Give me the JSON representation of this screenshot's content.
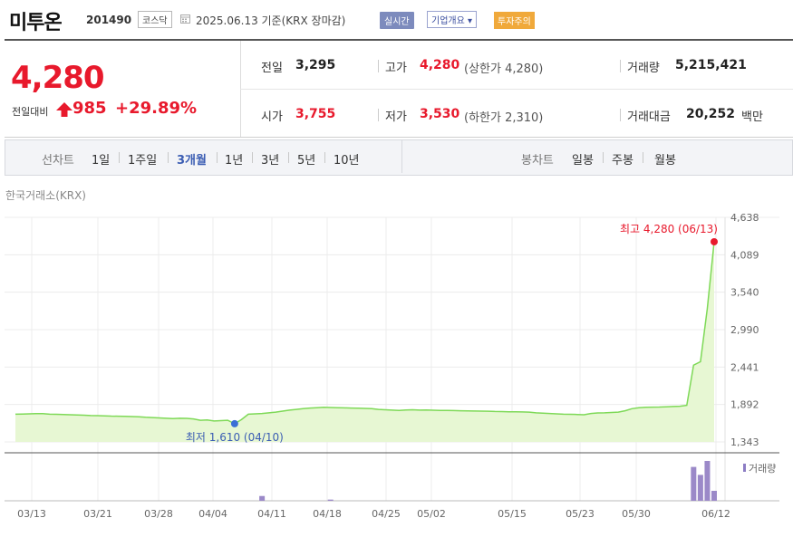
{
  "header": {
    "stock_name": "미투온",
    "stock_code": "201490",
    "market": "코스닥",
    "date_text": "2025.06.13  기준(KRX 장마감)",
    "btn_realtime": "실시간",
    "btn_company": "기업개요 ▾",
    "btn_warning": "투자주의"
  },
  "quote": {
    "price": "4,280",
    "change_label": "전일대비",
    "change_value": "985",
    "change_pct": "+29.89%",
    "prev_close_label": "전일",
    "prev_close": "3,295",
    "high_label": "고가",
    "high": "4,280",
    "upper_limit": "(상한가 4,280)",
    "volume_label": "거래량",
    "volume": "5,215,421",
    "open_label": "시가",
    "open": "3,755",
    "low_label": "저가",
    "low": "3,530",
    "lower_limit": "(하한가 2,310)",
    "trade_value_label": "거래대금",
    "trade_value": "20,252",
    "trade_value_unit": "백만"
  },
  "periods": {
    "line_chart_label": "선차트",
    "line_items": [
      "1일",
      "1주일",
      "3개월",
      "1년",
      "3년",
      "5년",
      "10년"
    ],
    "active": "3개월",
    "candle_chart_label": "봉차트",
    "candle_items": [
      "일봉",
      "주봉",
      "월봉"
    ]
  },
  "colors": {
    "up": "#e8192c",
    "accent": "#3b5db3",
    "area_fill": "#e7f7d3",
    "line": "#7ed957",
    "volume_bar": "#9b89c8"
  },
  "chart_data": {
    "type": "area",
    "exchange_label": "한국거래소(KRX)",
    "y_ticks": [
      "4,638",
      "4,089",
      "3,540",
      "2,990",
      "2,441",
      "1,892",
      "1,343"
    ],
    "ylim": [
      1343,
      4638
    ],
    "x_ticks": [
      "03/13",
      "03/21",
      "03/28",
      "04/04",
      "04/11",
      "04/18",
      "04/25",
      "05/02",
      "05/15",
      "05/23",
      "05/30",
      "06/12"
    ],
    "series": [
      {
        "values": [
          1750,
          1752,
          1755,
          1758,
          1757,
          1750,
          1748,
          1745,
          1742,
          1738,
          1735,
          1730,
          1728,
          1725,
          1722,
          1720,
          1718,
          1715,
          1712,
          1705,
          1700,
          1695,
          1690,
          1685,
          1690,
          1688,
          1680,
          1660,
          1665,
          1650,
          1655,
          1660,
          1610,
          1670,
          1750,
          1755,
          1760,
          1770,
          1780,
          1795,
          1810,
          1820,
          1830,
          1840,
          1845,
          1850,
          1848,
          1845,
          1842,
          1840,
          1838,
          1835,
          1830,
          1820,
          1815,
          1810,
          1805,
          1812,
          1815,
          1810,
          1812,
          1808,
          1806,
          1804,
          1803,
          1800,
          1798,
          1796,
          1795,
          1793,
          1790,
          1788,
          1786,
          1785,
          1783,
          1780,
          1770,
          1765,
          1760,
          1755,
          1750,
          1748,
          1745,
          1742,
          1760,
          1768,
          1770,
          1775,
          1780,
          1800,
          1830,
          1845,
          1850,
          1853,
          1855,
          1858,
          1862,
          1866,
          1880,
          2470,
          2520,
          3295,
          4280
        ]
      }
    ],
    "volume_label": "거래량",
    "volume": [
      0,
      0,
      0,
      0,
      0,
      0,
      0,
      0,
      0,
      0,
      0,
      0,
      0,
      0,
      0,
      0,
      0,
      0,
      0,
      0,
      0,
      0,
      0,
      0,
      0,
      0,
      0,
      0,
      0,
      0,
      0,
      0,
      0,
      0,
      0,
      0,
      0.12,
      0,
      0,
      0,
      0,
      0,
      0,
      0,
      0,
      0,
      0.03,
      0,
      0,
      0,
      0,
      0,
      0,
      0,
      0,
      0,
      0,
      0,
      0,
      0,
      0,
      0,
      0,
      0,
      0,
      0,
      0,
      0,
      0,
      0,
      0,
      0,
      0,
      0,
      0,
      0,
      0,
      0,
      0,
      0,
      0,
      0,
      0,
      0,
      0,
      0,
      0,
      0,
      0,
      0,
      0,
      0,
      0,
      0,
      0,
      0,
      0,
      0,
      0,
      0.85,
      0.65,
      1.0,
      0.25
    ],
    "annotations": {
      "high": "최고 4,280 (06/13)",
      "low": "최저 1,610 (04/10)"
    }
  }
}
